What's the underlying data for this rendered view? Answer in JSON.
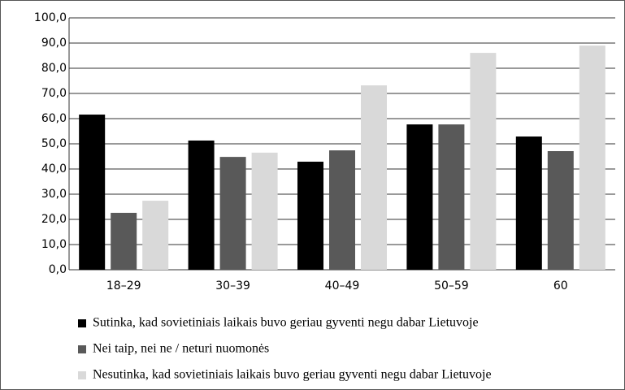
{
  "chart_data": {
    "type": "bar",
    "categories": [
      "18–29",
      "30–39",
      "40–49",
      "50–59",
      "60"
    ],
    "series": [
      {
        "name": "Sutinka, kad sovietiniais laikais buvo geriau gyventi negu dabar Lietuvoje",
        "color": "#000000",
        "values": [
          61.6,
          51.3,
          42.9,
          57.7,
          52.9
        ]
      },
      {
        "name": "Nei taip, nei ne / neturi nuomonės",
        "color": "#595959",
        "values": [
          22.6,
          44.8,
          47.4,
          57.7,
          47.1
        ]
      },
      {
        "name": "Nesutinka, kad sovietiniais laikais buvo geriau gyventi negu dabar Lietuvoje",
        "color": "#d9d9d9",
        "values": [
          27.4,
          46.5,
          73.2,
          86.1,
          89.0
        ]
      }
    ],
    "ylim": [
      0,
      100
    ],
    "yticks": [
      {
        "value": 0,
        "label": "0,0"
      },
      {
        "value": 10,
        "label": "10,0"
      },
      {
        "value": 20,
        "label": "20,0"
      },
      {
        "value": 30,
        "label": "30,0"
      },
      {
        "value": 40,
        "label": "40,0"
      },
      {
        "value": 50,
        "label": "50,0"
      },
      {
        "value": 60,
        "label": "60,0"
      },
      {
        "value": 70,
        "label": "70,0"
      },
      {
        "value": 80,
        "label": "80,0"
      },
      {
        "value": 90,
        "label": "90,0"
      },
      {
        "value": 100,
        "label": "100,0"
      }
    ],
    "grid": true,
    "legend": "bottom"
  }
}
